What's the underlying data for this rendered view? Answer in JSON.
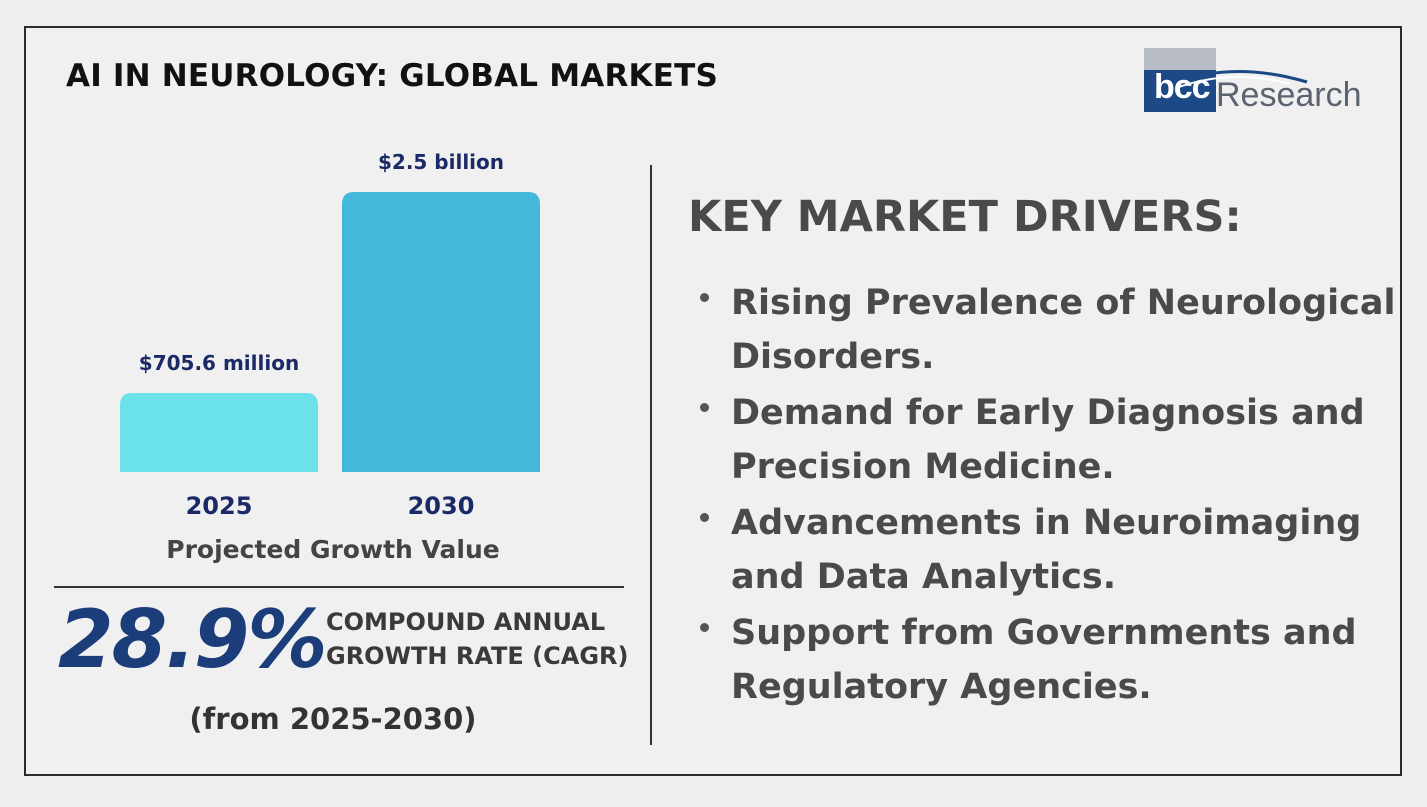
{
  "header": {
    "title": "AI IN NEUROLOGY: GLOBAL MARKETS",
    "logo_text": "bccResearch"
  },
  "chart_data": {
    "type": "bar",
    "categories": [
      "2025",
      "2030"
    ],
    "values": [
      0.7056,
      2.5
    ],
    "unit": "billion USD",
    "data_labels": [
      "$705.6 million",
      "$2.5 billion"
    ],
    "xlabel": "Projected Growth Value",
    "ylim": [
      0,
      2.5
    ],
    "grid": false,
    "colors": [
      "#6be2ea",
      "#44b8da"
    ],
    "label_color": "#1b2a66"
  },
  "cagr": {
    "value": "28.9%",
    "label_line1": "COMPOUND ANNUAL",
    "label_line2": "GROWTH RATE (CAGR)",
    "period": "(from 2025-2030)"
  },
  "drivers": {
    "heading": "KEY MARKET DRIVERS:",
    "items": [
      {
        "line1": "Rising Prevalence of Neurological",
        "line2": "Disorders."
      },
      {
        "line1": "Demand for Early Diagnosis and",
        "line2": "Precision Medicine."
      },
      {
        "line1": "Advancements in Neuroimaging",
        "line2": "and Data Analytics."
      },
      {
        "line1": "Support from Governments and",
        "line2": "Regulatory Agencies."
      }
    ]
  },
  "colors": {
    "accent_dark_blue": "#1b3d7a",
    "logo_blue": "#1d4a86",
    "text_grey": "#4a4a4a"
  }
}
